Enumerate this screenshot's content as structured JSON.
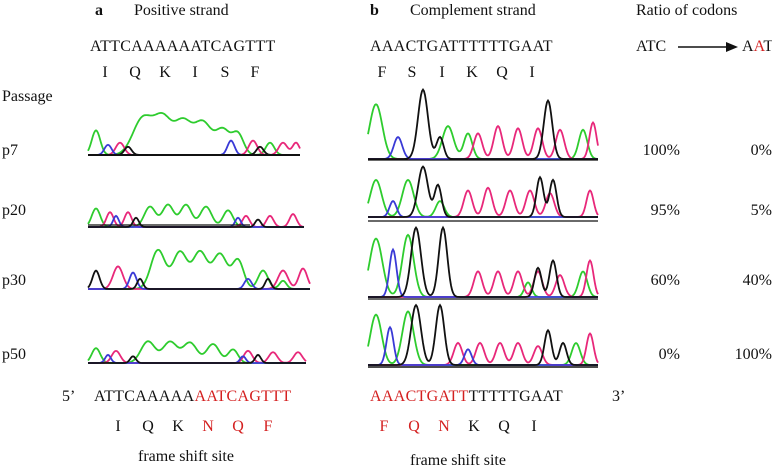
{
  "panel_a": {
    "label": "a",
    "title": "Positive strand",
    "seq": "ATTCAAAAAATCAGTTT",
    "aa": [
      "I",
      "Q",
      "K",
      "I",
      "S",
      "F"
    ]
  },
  "panel_b": {
    "label": "b",
    "title": "Complement strand",
    "seq": "AAACTGATTTTTTGAAT",
    "aa": [
      "F",
      "S",
      "I",
      "K",
      "Q",
      "I"
    ]
  },
  "ratio": {
    "title": "Ratio of codons",
    "from": "ATC",
    "to_pre": "A",
    "to_mid": "A",
    "to_post": "T"
  },
  "passage_label": "Passage",
  "passages": [
    {
      "name": "p7",
      "atc": "100%",
      "aat": "0%"
    },
    {
      "name": "p20",
      "atc": "95%",
      "aat": "5%"
    },
    {
      "name": "p30",
      "atc": "60%",
      "aat": "40%"
    },
    {
      "name": "p50",
      "atc": "0%",
      "aat": "100%"
    }
  ],
  "bottom": {
    "five_prime": "5’",
    "three_prime": "3’",
    "pos_black": "ATTCAAAAA",
    "pos_red": "AATCAGTTT",
    "pos_aa": [
      {
        "t": "I",
        "red": false
      },
      {
        "t": "Q",
        "red": false
      },
      {
        "t": "K",
        "red": false
      },
      {
        "t": "N",
        "red": true
      },
      {
        "t": "Q",
        "red": true
      },
      {
        "t": "F",
        "red": true
      }
    ],
    "comp_red": "AAACTGATT",
    "comp_black": "TTTTTGAAT",
    "comp_aa": [
      {
        "t": "F",
        "red": true
      },
      {
        "t": "Q",
        "red": true
      },
      {
        "t": "N",
        "red": true
      },
      {
        "t": "K",
        "red": false
      },
      {
        "t": "Q",
        "red": false
      },
      {
        "t": "I",
        "red": false
      }
    ],
    "frame_shift_left": "frame shift site",
    "frame_shift_right": "frame shift site"
  },
  "colors": {
    "A": "#2ecc2e",
    "T": "#e8287a",
    "C": "#3a3ad6",
    "G": "#111111",
    "red": "#d42020"
  }
}
